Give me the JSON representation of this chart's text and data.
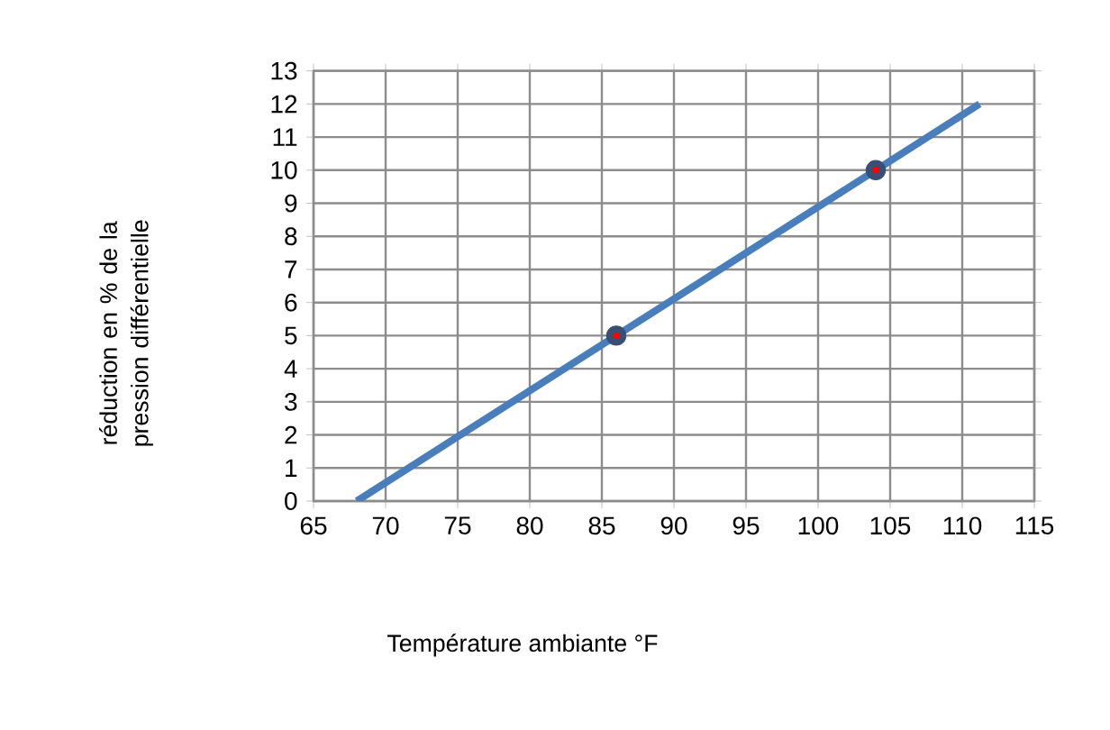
{
  "chart_data": {
    "type": "line",
    "xlabel": "Température ambiante  °F",
    "ylabel": "réduction en % de la pression différentielle",
    "xlim": [
      65,
      115
    ],
    "xticks": [
      65,
      70,
      75,
      80,
      85,
      90,
      95,
      100,
      105,
      110,
      115
    ],
    "ylim": [
      0,
      13
    ],
    "yticks": [
      0,
      1,
      2,
      3,
      4,
      5,
      6,
      7,
      8,
      9,
      10,
      11,
      12,
      13
    ],
    "grid": true,
    "series": [
      {
        "x": [
          68,
          111.2
        ],
        "values": [
          0,
          12
        ],
        "color": "#4a7ebb",
        "marker": "none"
      },
      {
        "type": "scatter",
        "x": [
          86,
          104
        ],
        "values": [
          5,
          10
        ],
        "color": "#3b4f75",
        "marker": "circle"
      }
    ]
  }
}
